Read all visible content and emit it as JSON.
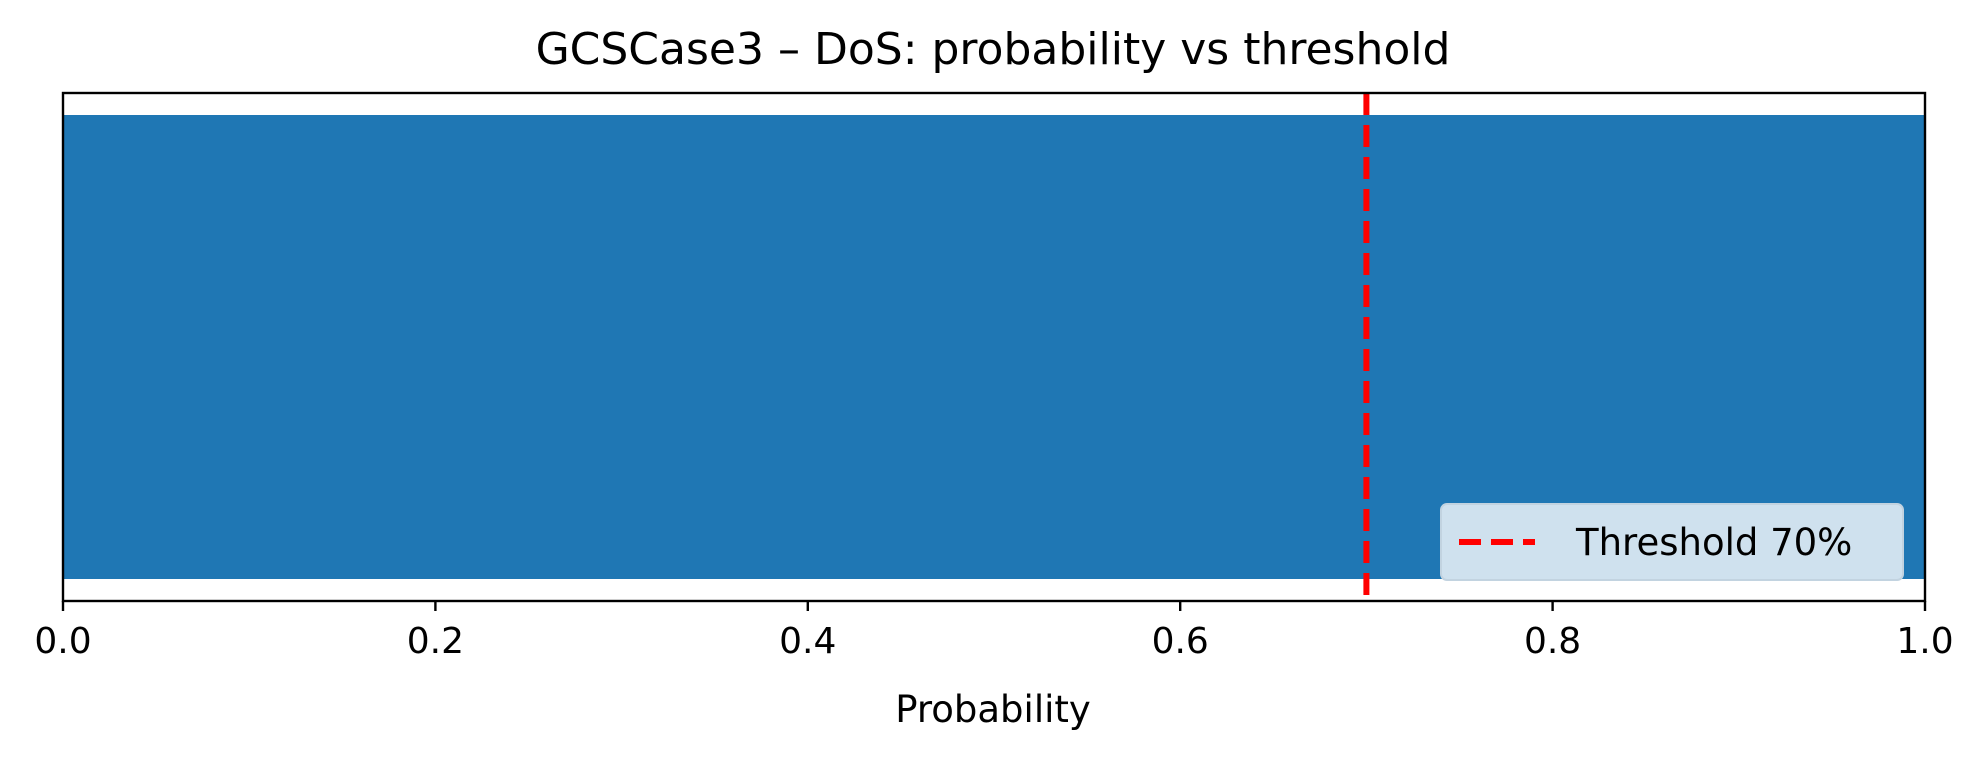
{
  "chart_data": {
    "type": "bar",
    "orientation": "horizontal",
    "title": "GCSCase3 – DoS: probability vs threshold",
    "xlabel": "Probability",
    "ylabel": "",
    "xlim": [
      0,
      1
    ],
    "xticks": [
      0.0,
      0.2,
      0.4,
      0.6,
      0.8,
      1.0
    ],
    "xtick_labels": [
      "0.0",
      "0.2",
      "0.4",
      "0.6",
      "0.8",
      "1.0"
    ],
    "categories": [
      ""
    ],
    "values": [
      1.0
    ],
    "bar_color": "#1f77b4",
    "grid": false,
    "threshold": {
      "value": 0.7,
      "label": "Threshold 70%",
      "color": "#ff0000",
      "style": "dashed"
    },
    "legend": {
      "placement": "lower-right",
      "entries": [
        "Threshold 70%"
      ]
    }
  }
}
